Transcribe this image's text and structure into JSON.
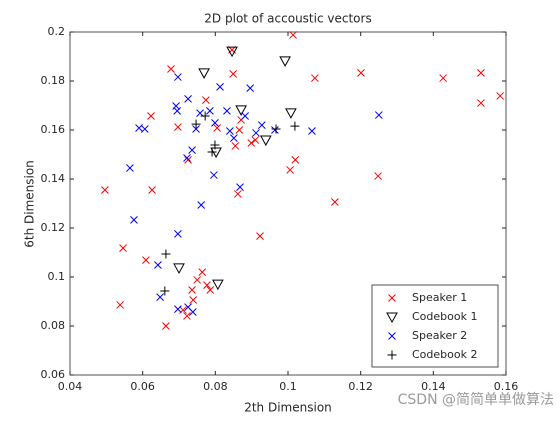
{
  "chart_data": {
    "type": "scatter",
    "title": "2D plot of accoustic vectors",
    "x_label": "2th Dimension",
    "y_label": "6th Dimension",
    "xlim": [
      0.04,
      0.16
    ],
    "ylim": [
      0.06,
      0.2
    ],
    "xticks": [
      0.04,
      0.06,
      0.08,
      0.1,
      0.12,
      0.14,
      0.16
    ],
    "yticks": [
      0.06,
      0.08,
      0.1,
      0.12,
      0.14,
      0.16,
      0.18,
      0.2
    ],
    "legend": "southeast",
    "watermark": "CSDN @简简单单做算法",
    "series": [
      {
        "name": "Speaker 1",
        "color": "#ff0000",
        "marker": "x",
        "x": [
          0.1014,
          0.0846,
          0.0678,
          0.0849,
          0.1074,
          0.1201,
          0.1427,
          0.1531,
          0.1584,
          0.1531,
          0.0774,
          0.0871,
          0.0623,
          0.0697,
          0.0805,
          0.0866,
          0.091,
          0.0899,
          0.0855,
          0.0764,
          0.075,
          0.0736,
          0.0711,
          0.0722,
          0.0739,
          0.0786,
          0.0777,
          0.0664,
          0.0538,
          0.0546,
          0.0609,
          0.0626,
          0.0496,
          0.1129,
          0.1248,
          0.1006,
          0.102,
          0.0923,
          0.0862,
          0.0725
        ],
        "y": [
          0.1988,
          0.1927,
          0.1849,
          0.1829,
          0.1812,
          0.1833,
          0.1812,
          0.1833,
          0.1739,
          0.171,
          0.1722,
          0.1641,
          0.1657,
          0.1612,
          0.1608,
          0.16,
          0.1559,
          0.1547,
          0.1535,
          0.102,
          0.0988,
          0.0947,
          0.0865,
          0.0841,
          0.0906,
          0.0947,
          0.0967,
          0.08,
          0.0886,
          0.1118,
          0.1069,
          0.1355,
          0.1355,
          0.1306,
          0.1412,
          0.1437,
          0.1478,
          0.1167,
          0.1339,
          0.1478
        ]
      },
      {
        "name": "Codebook 1",
        "color": "#000000",
        "marker": "v",
        "x": [
          0.0846,
          0.0992,
          0.0769,
          0.0871,
          0.1008,
          0.0939,
          0.0802,
          0.07,
          0.0807
        ],
        "y": [
          0.1922,
          0.1882,
          0.1833,
          0.1682,
          0.167,
          0.1559,
          0.151,
          0.1037,
          0.0971
        ]
      },
      {
        "name": "Speaker 2",
        "color": "#0000ff",
        "marker": "x",
        "x": [
          0.0697,
          0.0813,
          0.0896,
          0.0725,
          0.0692,
          0.0695,
          0.0758,
          0.0785,
          0.0832,
          0.0882,
          0.0606,
          0.059,
          0.0747,
          0.0799,
          0.084,
          0.0912,
          0.0851,
          0.0736,
          0.0722,
          0.0796,
          0.0868,
          0.0761,
          0.0565,
          0.0576,
          0.0697,
          0.1066,
          0.125,
          0.0928,
          0.0964,
          0.0648,
          0.0642,
          0.0697,
          0.0725,
          0.0738
        ],
        "y": [
          0.1816,
          0.1776,
          0.1771,
          0.1727,
          0.1698,
          0.1678,
          0.1669,
          0.1678,
          0.1678,
          0.1657,
          0.1604,
          0.1608,
          0.1604,
          0.1629,
          0.1596,
          0.1588,
          0.1567,
          0.1518,
          0.1486,
          0.1416,
          0.1367,
          0.1294,
          0.1445,
          0.1233,
          0.1176,
          0.1596,
          0.1661,
          0.162,
          0.16,
          0.0918,
          0.1049,
          0.0869,
          0.0877,
          0.0857
        ]
      },
      {
        "name": "Codebook 2",
        "color": "#000000",
        "marker": "+",
        "x": [
          0.0772,
          0.0747,
          0.0799,
          0.0791,
          0.0967,
          0.1019,
          0.0664,
          0.0661
        ],
        "y": [
          0.1657,
          0.1624,
          0.1539,
          0.151,
          0.1604,
          0.1616,
          0.1094,
          0.0943
        ]
      }
    ]
  }
}
